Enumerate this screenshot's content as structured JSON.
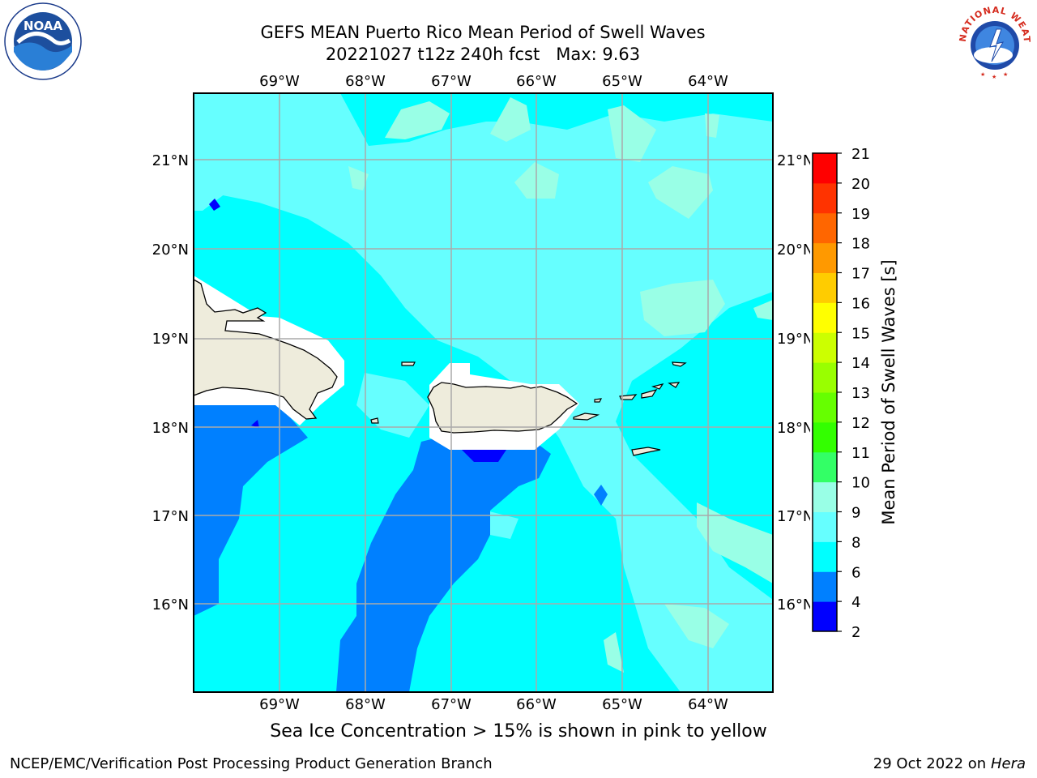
{
  "title": {
    "line1": "GEFS MEAN Puerto Rico Mean Period of Swell Waves",
    "line2": "20221027 t12z 240h fcst   Max: 9.63"
  },
  "map": {
    "lon_labels": [
      "69°W",
      "68°W",
      "67°W",
      "66°W",
      "65°W",
      "64°W"
    ],
    "lat_labels": [
      "21°N",
      "20°N",
      "19°N",
      "18°N",
      "17°N",
      "16°N"
    ],
    "land_color": "#eeecdc"
  },
  "colorbar": {
    "label": "Mean Period of Swell Waves [s]",
    "ticks": [
      "2",
      "4",
      "6",
      "8",
      "9",
      "10",
      "11",
      "12",
      "13",
      "14",
      "15",
      "16",
      "17",
      "18",
      "19",
      "20",
      "21"
    ],
    "bin_colors": [
      "#0000ff",
      "#0080ff",
      "#00ffff",
      "#66ffff",
      "#99ffe6",
      "#33ff66",
      "#33ff00",
      "#66ff00",
      "#99ff00",
      "#ccff00",
      "#ffff00",
      "#ffcc00",
      "#ff9900",
      "#ff6600",
      "#ff3300",
      "#ff0000"
    ]
  },
  "caption": "Sea Ice Concentration > 15% is shown in pink to yellow",
  "footer": {
    "left": "NCEP/EMC/Verification Post Processing Product Generation Branch",
    "right_date": "29 Oct 2022 on ",
    "right_machine": "Hera"
  },
  "logos": {
    "noaa_text": "NOAA",
    "nws_text": "NATIONAL WEATHER SERVICE"
  }
}
